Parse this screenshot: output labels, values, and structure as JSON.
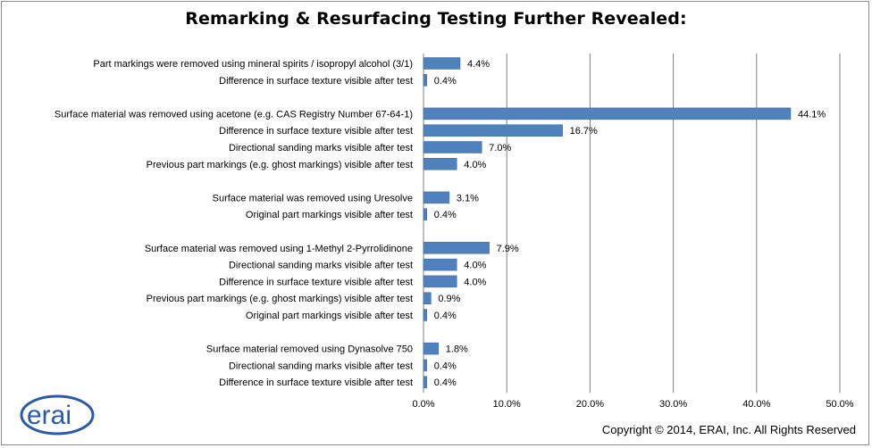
{
  "title": "Remarking & Resurfacing Testing Further Revealed:",
  "logo_text": "erai",
  "copyright": "Copyright © 2014, ERAI, Inc.  All Rights Reserved",
  "colors": {
    "bar": "#4f81bd",
    "bar_edge": "#3d6a9e",
    "grid": "#808080",
    "axis": "#808080"
  },
  "chart_data": {
    "type": "bar",
    "orientation": "horizontal",
    "title": "Remarking & Resurfacing Testing Further Revealed:",
    "xlim": [
      0,
      50
    ],
    "x_ticks": [
      "0.0%",
      "10.0%",
      "20.0%",
      "30.0%",
      "40.0%",
      "50.0%"
    ],
    "grid": "vertical",
    "categories": [
      "Part markings  were removed using mineral spirits / isopropyl alcohol (3/1)",
      "Difference in surface texture visible after test",
      "",
      "Surface material was removed using acetone (e.g. CAS Registry Number 67-64-1)",
      "Difference in surface texture visible after test",
      "Directional sanding marks visible after test",
      "Previous part markings (e.g. ghost markings) visible after test",
      "",
      "Surface material was removed using Uresolve",
      "Original part markings visible after test",
      "",
      "Surface material was removed using 1-Methyl 2-Pyrrolidinone",
      "Directional sanding marks visible after test",
      "Difference in surface texture visible after test",
      "Previous part markings (e.g. ghost markings) visible after test",
      "Original part markings visible after test",
      "",
      "Surface material removed using Dynasolve 750",
      "Directional sanding marks visible after test",
      "Difference in surface texture visible after test"
    ],
    "values": [
      4.4,
      0.4,
      null,
      44.1,
      16.7,
      7.0,
      4.0,
      null,
      3.1,
      0.4,
      null,
      7.9,
      4.0,
      4.0,
      0.9,
      0.4,
      null,
      1.8,
      0.4,
      0.4
    ],
    "data_labels": [
      "4.4%",
      "0.4%",
      "",
      "44.1%",
      "16.7%",
      "7.0%",
      "4.0%",
      "",
      "3.1%",
      "0.4%",
      "",
      "7.9%",
      "4.0%",
      "4.0%",
      "0.9%",
      "0.4%",
      "",
      "1.8%",
      "0.4%",
      "0.4%"
    ]
  }
}
